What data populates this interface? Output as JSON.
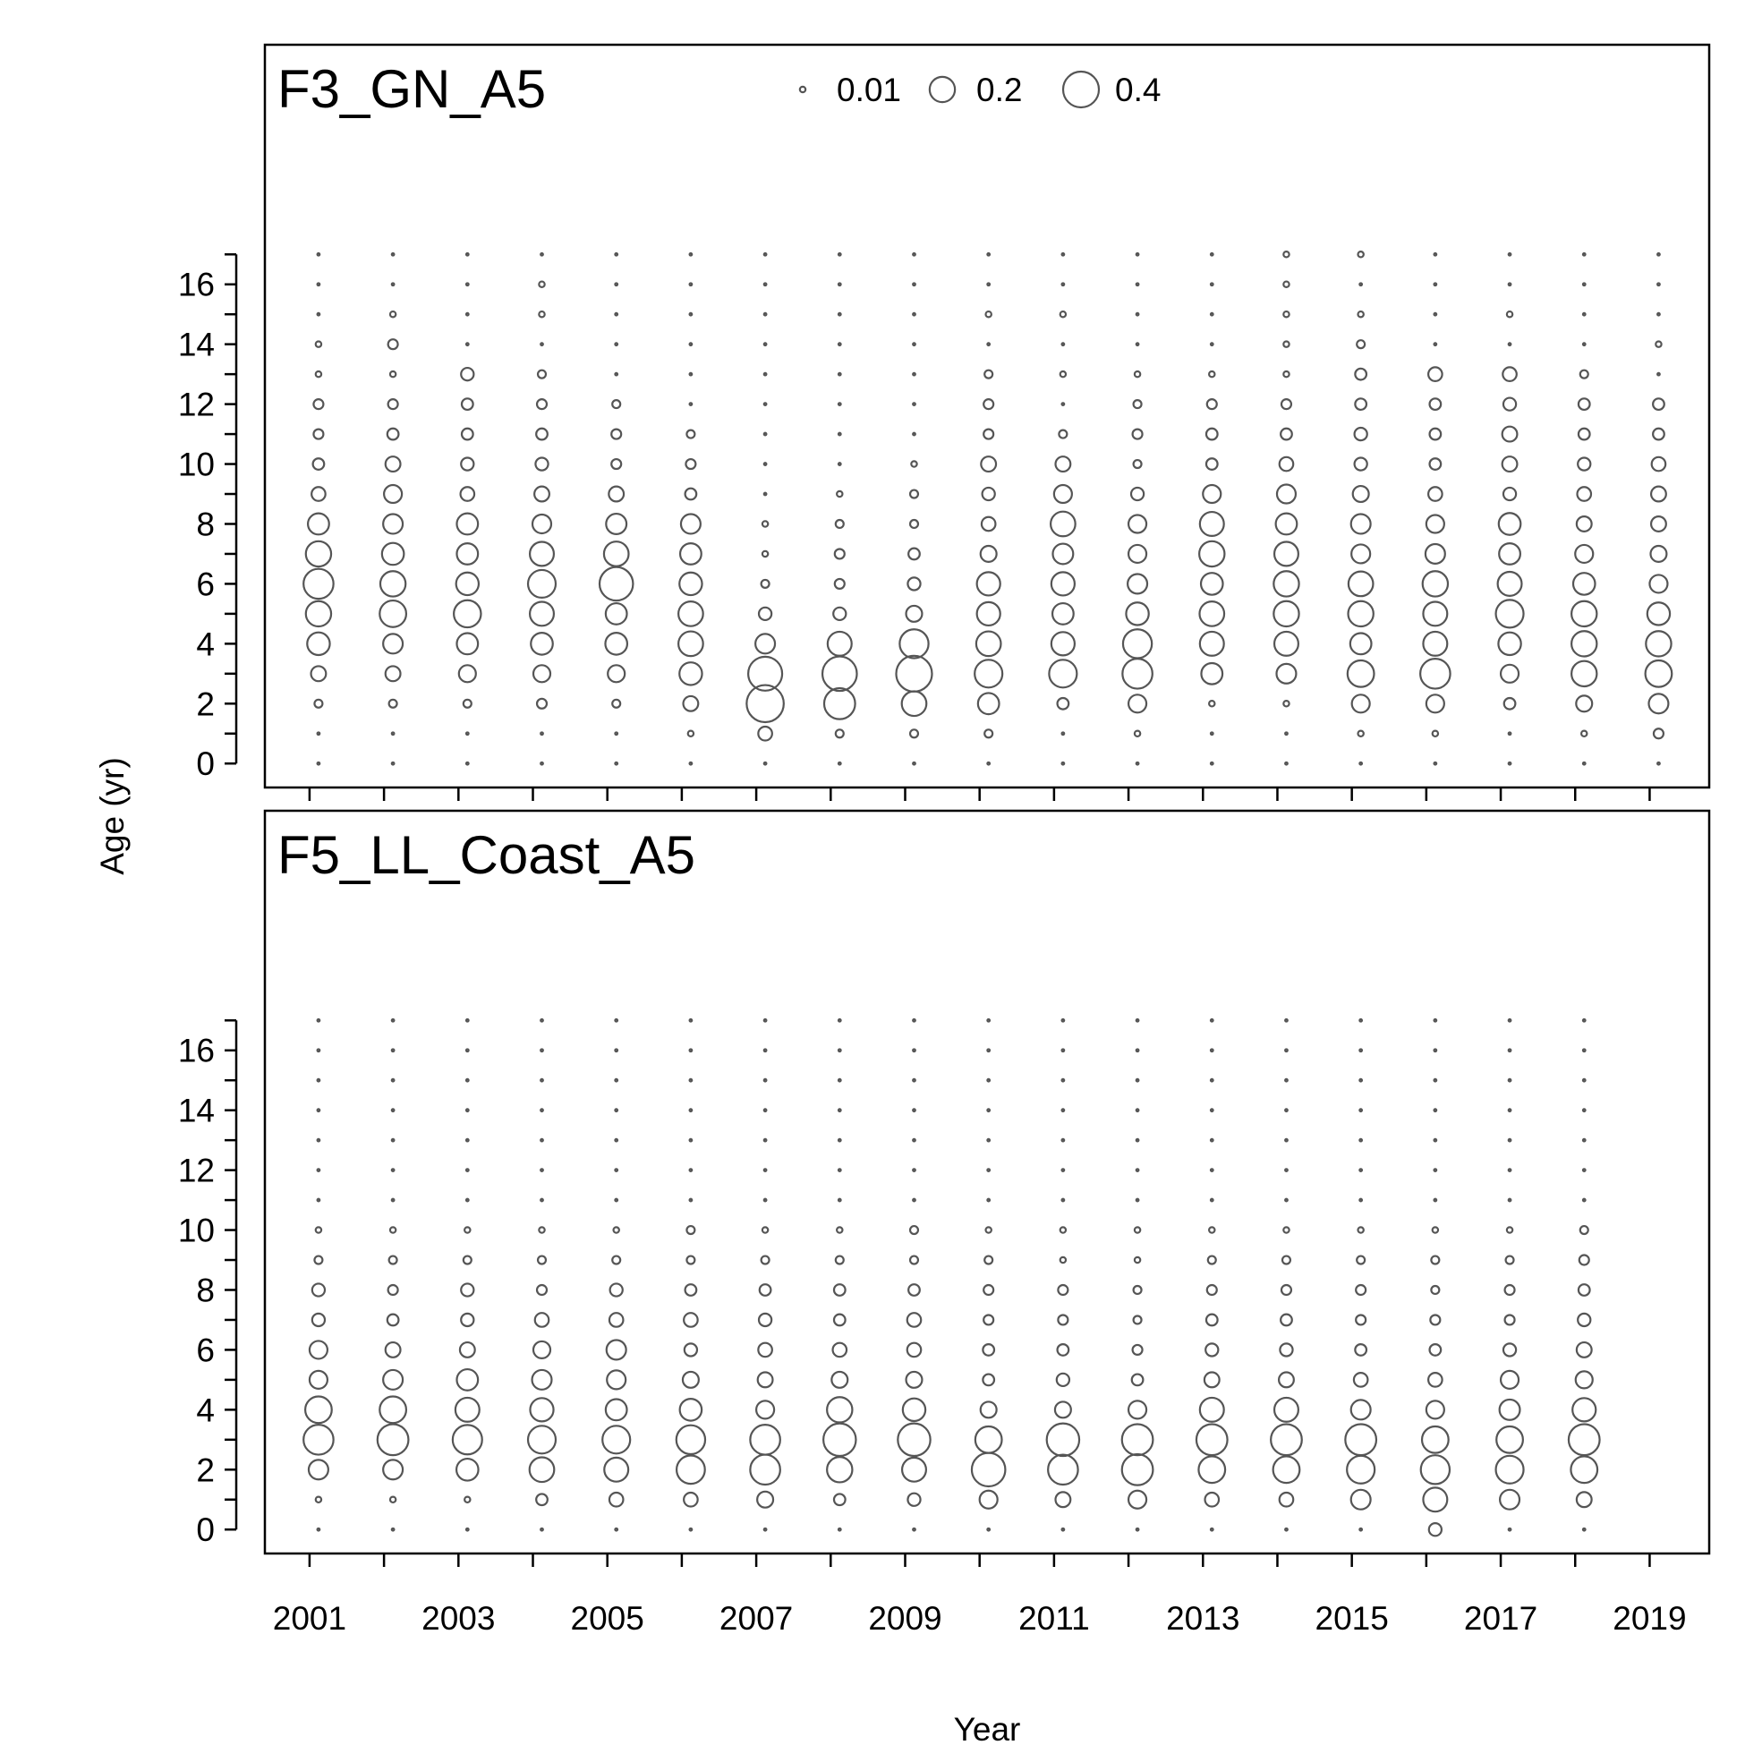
{
  "chart_data": {
    "type": "scatter",
    "subtype": "bubble",
    "xlabel": "Year",
    "ylabel": "Age (yr)",
    "x_tick_labels": [
      "2001",
      "2003",
      "2005",
      "2007",
      "2009",
      "2011",
      "2013",
      "2015",
      "2017",
      "2019"
    ],
    "y_tick_labels": [
      "0",
      "2",
      "4",
      "6",
      "8",
      "10",
      "12",
      "14",
      "16"
    ],
    "xlim": [
      2000.4,
      2019.8
    ],
    "ylim": [
      -0.8,
      24
    ],
    "ages": [
      0,
      1,
      2,
      3,
      4,
      5,
      6,
      7,
      8,
      9,
      10,
      11,
      12,
      13,
      14,
      15,
      16,
      17
    ],
    "legend": {
      "values": [
        0.01,
        0.2,
        0.4
      ],
      "labels": [
        "0.01",
        "0.2",
        "0.4"
      ],
      "placement": "top-center"
    },
    "panels": [
      {
        "title": "F3_GN_A5",
        "years": [
          2001,
          2002,
          2003,
          2004,
          2005,
          2006,
          2007,
          2008,
          2009,
          2010,
          2011,
          2012,
          2013,
          2014,
          2015,
          2016,
          2017,
          2018,
          2019
        ],
        "proportions": [
          [
            0,
            0,
            0.02,
            0.07,
            0.16,
            0.2,
            0.28,
            0.2,
            0.14,
            0.06,
            0.04,
            0.03,
            0.03,
            0.01,
            0.01,
            0,
            0,
            0
          ],
          [
            0,
            0,
            0.02,
            0.07,
            0.12,
            0.22,
            0.2,
            0.15,
            0.12,
            0.1,
            0.07,
            0.04,
            0.03,
            0.01,
            0.03,
            0.01,
            0,
            0
          ],
          [
            0,
            0,
            0.02,
            0.09,
            0.14,
            0.23,
            0.16,
            0.14,
            0.14,
            0.06,
            0.05,
            0.04,
            0.04,
            0.05,
            0,
            0,
            0,
            0
          ],
          [
            0,
            0,
            0.03,
            0.09,
            0.15,
            0.18,
            0.24,
            0.18,
            0.11,
            0.07,
            0.05,
            0.04,
            0.03,
            0.02,
            0,
            0.01,
            0.01,
            0
          ],
          [
            0,
            0,
            0.02,
            0.09,
            0.15,
            0.14,
            0.35,
            0.19,
            0.13,
            0.07,
            0.03,
            0.03,
            0.02,
            0,
            0,
            0,
            0,
            0
          ],
          [
            0,
            0.01,
            0.07,
            0.16,
            0.19,
            0.19,
            0.16,
            0.14,
            0.12,
            0.04,
            0.03,
            0.02,
            0,
            0,
            0,
            0,
            0,
            0
          ],
          [
            0,
            0.06,
            0.43,
            0.36,
            0.12,
            0.05,
            0.02,
            0.01,
            0.01,
            0,
            0,
            0,
            0,
            0,
            0,
            0,
            0,
            0
          ],
          [
            0,
            0.02,
            0.3,
            0.37,
            0.18,
            0.05,
            0.03,
            0.03,
            0.02,
            0.01,
            0,
            0,
            0,
            0,
            0,
            0,
            0,
            0
          ],
          [
            0,
            0.02,
            0.19,
            0.4,
            0.26,
            0.08,
            0.05,
            0.04,
            0.02,
            0.02,
            0.01,
            0,
            0,
            0,
            0,
            0,
            0,
            0
          ],
          [
            0,
            0.02,
            0.14,
            0.24,
            0.19,
            0.17,
            0.17,
            0.08,
            0.06,
            0.05,
            0.07,
            0.03,
            0.03,
            0.02,
            0,
            0.01,
            0,
            0
          ],
          [
            0,
            0,
            0.04,
            0.24,
            0.17,
            0.14,
            0.17,
            0.13,
            0.19,
            0.1,
            0.07,
            0.02,
            0,
            0.01,
            0,
            0.01,
            0,
            0
          ],
          [
            0,
            0.01,
            0.1,
            0.28,
            0.26,
            0.16,
            0.12,
            0.1,
            0.1,
            0.05,
            0.02,
            0.03,
            0.02,
            0.01,
            0,
            0,
            0,
            0
          ],
          [
            0,
            0,
            0.01,
            0.14,
            0.18,
            0.19,
            0.15,
            0.2,
            0.18,
            0.1,
            0.04,
            0.04,
            0.03,
            0.01,
            0,
            0,
            0,
            0
          ],
          [
            0,
            0,
            0.01,
            0.12,
            0.18,
            0.2,
            0.2,
            0.18,
            0.14,
            0.11,
            0.06,
            0.04,
            0.03,
            0.01,
            0.01,
            0.01,
            0.01,
            0.01
          ],
          [
            0,
            0.01,
            0.1,
            0.22,
            0.14,
            0.2,
            0.19,
            0.11,
            0.12,
            0.08,
            0.05,
            0.05,
            0.04,
            0.04,
            0.02,
            0.01,
            0,
            0.01
          ],
          [
            0,
            0.01,
            0.1,
            0.28,
            0.18,
            0.18,
            0.2,
            0.12,
            0.1,
            0.06,
            0.04,
            0.04,
            0.04,
            0.06,
            0,
            0,
            0,
            0
          ],
          [
            0,
            0,
            0.04,
            0.1,
            0.16,
            0.24,
            0.18,
            0.14,
            0.15,
            0.05,
            0.07,
            0.07,
            0.05,
            0.06,
            0,
            0.01,
            0,
            0
          ],
          [
            0,
            0.01,
            0.08,
            0.2,
            0.2,
            0.2,
            0.15,
            0.1,
            0.07,
            0.06,
            0.05,
            0.04,
            0.04,
            0.02,
            0,
            0,
            0,
            0
          ],
          [
            0,
            0.03,
            0.12,
            0.22,
            0.2,
            0.16,
            0.1,
            0.08,
            0.07,
            0.07,
            0.06,
            0.04,
            0.04,
            0,
            0.01,
            0,
            0,
            0
          ]
        ]
      },
      {
        "title": "F5_LL_Coast_A5",
        "years": [
          2001,
          2002,
          2003,
          2004,
          2005,
          2006,
          2007,
          2008,
          2009,
          2010,
          2011,
          2012,
          2013,
          2014,
          2015,
          2016,
          2017,
          2018
        ],
        "proportions": [
          [
            0,
            0.01,
            0.12,
            0.28,
            0.22,
            0.1,
            0.1,
            0.05,
            0.05,
            0.02,
            0.01,
            0,
            0,
            0,
            0,
            0,
            0,
            0
          ],
          [
            0,
            0.01,
            0.12,
            0.3,
            0.22,
            0.12,
            0.07,
            0.04,
            0.03,
            0.02,
            0.01,
            0,
            0,
            0,
            0,
            0,
            0,
            0
          ],
          [
            0,
            0.01,
            0.15,
            0.27,
            0.18,
            0.14,
            0.07,
            0.05,
            0.05,
            0.02,
            0.01,
            0,
            0,
            0,
            0,
            0,
            0,
            0
          ],
          [
            0,
            0.04,
            0.19,
            0.24,
            0.17,
            0.12,
            0.09,
            0.06,
            0.03,
            0.02,
            0.01,
            0,
            0,
            0,
            0,
            0,
            0,
            0
          ],
          [
            0,
            0.06,
            0.18,
            0.24,
            0.14,
            0.11,
            0.12,
            0.06,
            0.05,
            0.02,
            0.01,
            0,
            0,
            0,
            0,
            0,
            0,
            0
          ],
          [
            0,
            0.06,
            0.25,
            0.26,
            0.15,
            0.08,
            0.05,
            0.06,
            0.04,
            0.02,
            0.02,
            0,
            0,
            0,
            0,
            0,
            0,
            0
          ],
          [
            0,
            0.08,
            0.28,
            0.28,
            0.1,
            0.07,
            0.06,
            0.05,
            0.04,
            0.02,
            0.01,
            0,
            0,
            0,
            0,
            0,
            0,
            0
          ],
          [
            0,
            0.04,
            0.2,
            0.33,
            0.2,
            0.08,
            0.06,
            0.04,
            0.04,
            0.02,
            0.01,
            0,
            0,
            0,
            0,
            0,
            0,
            0
          ],
          [
            0,
            0.05,
            0.18,
            0.33,
            0.16,
            0.08,
            0.06,
            0.06,
            0.04,
            0.02,
            0.02,
            0,
            0,
            0,
            0,
            0,
            0,
            0
          ],
          [
            0,
            0.1,
            0.35,
            0.22,
            0.08,
            0.04,
            0.04,
            0.03,
            0.03,
            0.02,
            0.01,
            0,
            0,
            0,
            0,
            0,
            0,
            0
          ],
          [
            0,
            0.07,
            0.28,
            0.33,
            0.08,
            0.05,
            0.04,
            0.03,
            0.03,
            0.01,
            0.01,
            0,
            0,
            0,
            0,
            0,
            0,
            0
          ],
          [
            0,
            0.1,
            0.3,
            0.3,
            0.1,
            0.04,
            0.03,
            0.02,
            0.02,
            0.01,
            0.01,
            0,
            0,
            0,
            0,
            0,
            0,
            0
          ],
          [
            0,
            0.06,
            0.22,
            0.3,
            0.18,
            0.07,
            0.05,
            0.04,
            0.03,
            0.02,
            0.01,
            0,
            0,
            0,
            0,
            0,
            0,
            0
          ],
          [
            0,
            0.06,
            0.22,
            0.3,
            0.18,
            0.07,
            0.05,
            0.04,
            0.03,
            0.02,
            0.01,
            0,
            0,
            0,
            0,
            0,
            0,
            0
          ],
          [
            0,
            0.12,
            0.24,
            0.3,
            0.12,
            0.06,
            0.04,
            0.03,
            0.03,
            0.02,
            0.01,
            0,
            0,
            0,
            0,
            0,
            0,
            0
          ],
          [
            0.05,
            0.18,
            0.26,
            0.22,
            0.1,
            0.06,
            0.04,
            0.03,
            0.02,
            0.02,
            0.01,
            0,
            0,
            0,
            0,
            0,
            0,
            0
          ],
          [
            0,
            0.12,
            0.24,
            0.22,
            0.13,
            0.1,
            0.05,
            0.03,
            0.03,
            0.02,
            0.01,
            0,
            0,
            0,
            0,
            0,
            0,
            0
          ],
          [
            0,
            0.07,
            0.22,
            0.3,
            0.17,
            0.09,
            0.07,
            0.05,
            0.04,
            0.03,
            0.02,
            0,
            0,
            0,
            0,
            0,
            0,
            0
          ]
        ]
      }
    ]
  }
}
